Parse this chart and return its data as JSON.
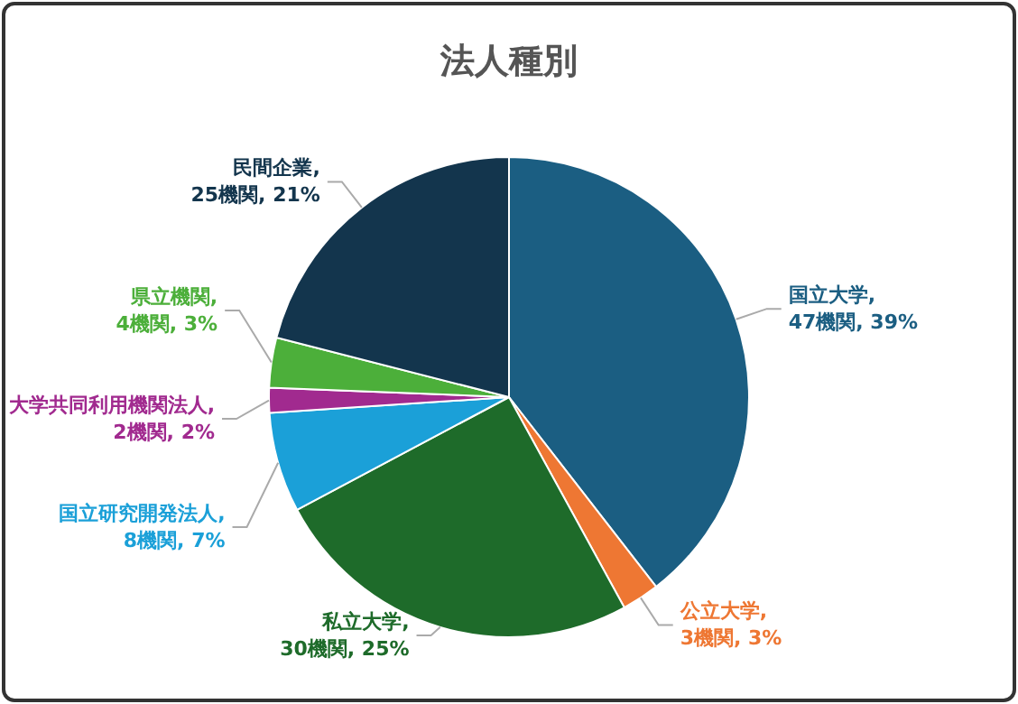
{
  "chart_data": {
    "type": "pie",
    "title": "法人種別",
    "categories": [
      "国立大学",
      "公立大学",
      "私立大学",
      "国立研究開発法人",
      "大学共同利用機関法人",
      "県立機関",
      "民間企業"
    ],
    "values": [
      47,
      3,
      30,
      8,
      2,
      4,
      25
    ],
    "value_labels": [
      ", 47機関, 39%",
      ", 3機関, 3%",
      ", 30機関, 25%",
      ", 8機関, 7%",
      ", 2機関, 2%",
      ", 4機関, 3%",
      ", 25機関, 21%"
    ],
    "colors": [
      "#1b5e82",
      "#ee7733",
      "#1e6b2a",
      "#1ba0d8",
      "#a12a8f",
      "#4caf3a",
      "#13354d"
    ]
  }
}
